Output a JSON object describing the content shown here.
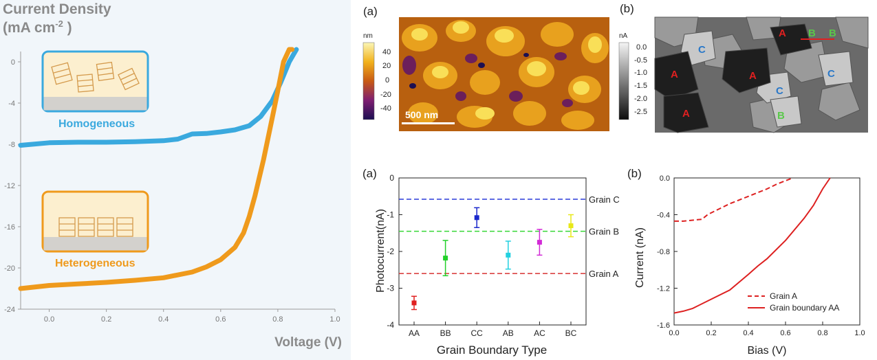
{
  "panel_jv": {
    "title_line1": "Current Density",
    "title_line2": "(mA cm",
    "title_sup": "-2",
    "title_tail": " )",
    "xlabel": "Voltage (V)",
    "inset_top_label": "Homogeneous",
    "inset_bottom_label": "Heterogeneous",
    "colors": {
      "homogeneous": "#3aa9de",
      "heterogeneous": "#ef9a1c",
      "inset_bg": "#fcefcf",
      "substrate": "#d3d1cd"
    }
  },
  "panel_afm": {
    "label": "(a)",
    "scale_unit": "nm",
    "scale_ticks": [
      "40",
      "20",
      "0",
      "-20",
      "-40"
    ],
    "scalebar_text": "500 nm"
  },
  "panel_cafm": {
    "label": "(b)",
    "scale_unit": "nA",
    "scale_ticks": [
      "0.0",
      "-0.5",
      "-1.0",
      "-1.5",
      "-2.0",
      "-2.5"
    ],
    "grain_labels": [
      "A",
      "B",
      "B",
      "C",
      "A",
      "A",
      "C",
      "C",
      "A",
      "B"
    ]
  },
  "panel_photocurrent": {
    "label": "(a)",
    "ylabel": "Photocurrent(nA)",
    "xlabel": "Grain Boundary Type",
    "ref_labels": [
      "Grain C",
      "Grain B",
      "Grain A"
    ]
  },
  "panel_iv": {
    "label": "(b)",
    "ylabel": "Current (nA)",
    "xlabel": "Bias (V)",
    "legend": [
      "Grain A",
      "Grain boundary AA"
    ]
  },
  "chart_data": [
    {
      "type": "line",
      "xlabel": "Voltage (V)",
      "ylabel": "Current Density (mA cm-2)",
      "xlim": [
        -0.1,
        1.0
      ],
      "ylim": [
        -24,
        1
      ],
      "xticks": [
        "0.0",
        "0.2",
        "0.4",
        "0.6",
        "0.8",
        "1.0"
      ],
      "yticks": [
        "0",
        "-4",
        "-8",
        "-12",
        "-16",
        "-20",
        "-24"
      ],
      "grid": false,
      "series": [
        {
          "name": "Homogeneous",
          "color": "#3aa9de",
          "x": [
            -0.1,
            0.0,
            0.1,
            0.2,
            0.3,
            0.4,
            0.45,
            0.5,
            0.55,
            0.6,
            0.65,
            0.7,
            0.74,
            0.78,
            0.81,
            0.84,
            0.865
          ],
          "y": [
            -8.1,
            -7.85,
            -7.8,
            -7.8,
            -7.75,
            -7.65,
            -7.5,
            -7.0,
            -6.95,
            -6.8,
            -6.6,
            -6.2,
            -5.3,
            -3.8,
            -2.0,
            0.0,
            1.2
          ]
        },
        {
          "name": "Heterogeneous",
          "color": "#ef9a1c",
          "x": [
            -0.1,
            0.0,
            0.1,
            0.2,
            0.3,
            0.4,
            0.5,
            0.55,
            0.6,
            0.65,
            0.68,
            0.7,
            0.72,
            0.75,
            0.78,
            0.8,
            0.82,
            0.84,
            0.85
          ],
          "y": [
            -22.0,
            -21.7,
            -21.55,
            -21.4,
            -21.2,
            -20.95,
            -20.4,
            -19.9,
            -19.2,
            -18.0,
            -16.6,
            -15.0,
            -13.0,
            -9.5,
            -5.5,
            -2.8,
            0.0,
            1.2,
            1.2
          ]
        }
      ]
    },
    {
      "type": "scatter",
      "xlabel": "Grain Boundary Type",
      "ylabel": "Photocurrent(nA)",
      "ylim": [
        -4,
        0
      ],
      "yticks": [
        "0",
        "-1",
        "-2",
        "-3",
        "-4"
      ],
      "categories": [
        "AA",
        "BB",
        "CC",
        "AB",
        "AC",
        "BC"
      ],
      "values": [
        -3.4,
        -2.18,
        -1.08,
        -2.1,
        -1.75,
        -1.3
      ],
      "errors": [
        0.18,
        0.48,
        0.27,
        0.38,
        0.35,
        0.3
      ],
      "colors": [
        "#e02020",
        "#22d02a",
        "#1a28cc",
        "#22d0e0",
        "#d22ad6",
        "#e8e818"
      ],
      "reference_lines": [
        {
          "name": "Grain C",
          "y": -0.58,
          "color": "#2a3ad8"
        },
        {
          "name": "Grain B",
          "y": -1.45,
          "color": "#36d636"
        },
        {
          "name": "Grain A",
          "y": -2.6,
          "color": "#d83030"
        }
      ]
    },
    {
      "type": "line",
      "xlabel": "Bias (V)",
      "ylabel": "Current (nA)",
      "xlim": [
        0.0,
        1.0
      ],
      "ylim": [
        -1.6,
        0.0
      ],
      "xticks": [
        "0.0",
        "0.2",
        "0.4",
        "0.6",
        "0.8",
        "1.0"
      ],
      "yticks": [
        "0.0",
        "-0.4",
        "-0.8",
        "-1.2",
        "-1.6"
      ],
      "legend_position": "bottom-left",
      "series": [
        {
          "name": "Grain A",
          "style": "dashed",
          "color": "#dd2020",
          "x": [
            0.0,
            0.05,
            0.1,
            0.15,
            0.18,
            0.25,
            0.3,
            0.4,
            0.5,
            0.55,
            0.6,
            0.64
          ],
          "y": [
            -0.47,
            -0.47,
            -0.46,
            -0.45,
            -0.4,
            -0.33,
            -0.28,
            -0.2,
            -0.12,
            -0.07,
            -0.03,
            0.0
          ]
        },
        {
          "name": "Grain boundary AA",
          "style": "solid",
          "color": "#dd2020",
          "x": [
            0.0,
            0.05,
            0.1,
            0.2,
            0.3,
            0.4,
            0.45,
            0.5,
            0.6,
            0.7,
            0.75,
            0.8,
            0.84
          ],
          "y": [
            -1.47,
            -1.45,
            -1.42,
            -1.32,
            -1.22,
            -1.05,
            -0.96,
            -0.88,
            -0.68,
            -0.44,
            -0.3,
            -0.12,
            0.0
          ]
        }
      ]
    }
  ]
}
